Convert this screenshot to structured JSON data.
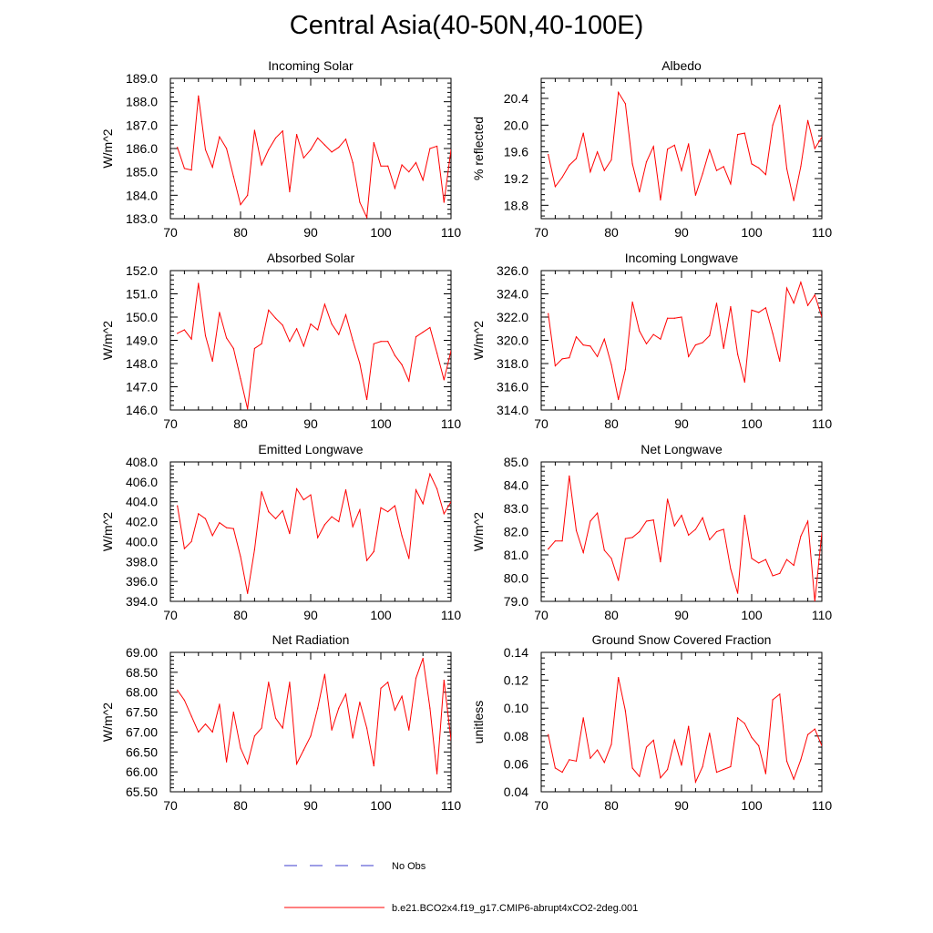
{
  "title": "Central Asia(40-50N,40-100E)",
  "line_color": "#ff0000",
  "obs_color": "#3b3bcc",
  "legend": {
    "obs_label": "No Obs",
    "model_label": "b.e21.BCO2x4.f19_g17.CMIP6-abrupt4xCO2-2deg.001"
  },
  "chart_data": [
    {
      "type": "line",
      "title": "Incoming Solar",
      "xlabel": "",
      "ylabel": "W/m^2",
      "xlim": [
        70,
        110
      ],
      "ylim": [
        183.0,
        189.0
      ],
      "yticks": [
        183.0,
        184.0,
        185.0,
        186.0,
        187.0,
        188.0,
        189.0
      ],
      "ytick_decimals": 1,
      "xticks": [
        70,
        80,
        90,
        100,
        110
      ],
      "x_start": 71,
      "values": [
        186.05,
        185.15,
        185.08,
        188.25,
        185.95,
        185.2,
        186.5,
        186.0,
        184.8,
        183.6,
        184.0,
        186.78,
        185.3,
        185.95,
        186.45,
        186.75,
        184.15,
        186.6,
        185.6,
        185.95,
        186.45,
        186.15,
        185.85,
        186.05,
        186.4,
        185.4,
        183.7,
        183.05,
        186.25,
        185.25,
        185.25,
        184.3,
        185.3,
        185.0,
        185.4,
        184.65,
        186.0,
        186.1,
        183.7,
        185.95
      ]
    },
    {
      "type": "line",
      "title": "Albedo",
      "xlabel": "",
      "ylabel": "% reflected",
      "xlim": [
        70,
        110
      ],
      "ylim": [
        18.6,
        20.7
      ],
      "yticks": [
        18.8,
        19.2,
        19.6,
        20.0,
        20.4
      ],
      "ytick_decimals": 1,
      "xticks": [
        70,
        80,
        90,
        100,
        110
      ],
      "x_start": 71,
      "values": [
        19.56,
        19.08,
        19.22,
        19.4,
        19.5,
        19.88,
        19.3,
        19.6,
        19.32,
        19.48,
        20.49,
        20.32,
        19.42,
        19.0,
        19.45,
        19.68,
        18.88,
        19.64,
        19.7,
        19.32,
        19.72,
        18.95,
        19.27,
        19.63,
        19.32,
        19.38,
        19.12,
        19.86,
        19.88,
        19.42,
        19.36,
        19.26,
        20.0,
        20.3,
        19.35,
        18.87,
        19.38,
        20.07,
        19.65,
        19.82
      ]
    },
    {
      "type": "line",
      "title": "Absorbed Solar",
      "xlabel": "",
      "ylabel": "W/m^2",
      "xlim": [
        70,
        110
      ],
      "ylim": [
        146.0,
        152.0
      ],
      "yticks": [
        146.0,
        147.0,
        148.0,
        149.0,
        150.0,
        151.0,
        152.0
      ],
      "ytick_decimals": 1,
      "xticks": [
        70,
        80,
        90,
        100,
        110
      ],
      "x_start": 71,
      "values": [
        149.3,
        149.45,
        149.05,
        151.45,
        149.2,
        148.1,
        150.2,
        149.1,
        148.65,
        147.35,
        146.05,
        148.65,
        148.85,
        150.3,
        149.95,
        149.65,
        148.95,
        149.5,
        148.75,
        149.7,
        149.45,
        150.55,
        149.7,
        149.25,
        150.1,
        149.0,
        148.0,
        146.45,
        148.85,
        148.95,
        148.95,
        148.35,
        147.95,
        147.25,
        149.15,
        149.35,
        149.55,
        148.45,
        147.3,
        148.55
      ]
    },
    {
      "type": "line",
      "title": "Incoming Longwave",
      "xlabel": "",
      "ylabel": "W/m^2",
      "xlim": [
        70,
        110
      ],
      "ylim": [
        314.0,
        326.0
      ],
      "yticks": [
        314.0,
        316.0,
        318.0,
        320.0,
        322.0,
        324.0,
        326.0
      ],
      "ytick_decimals": 1,
      "xticks": [
        70,
        80,
        90,
        100,
        110
      ],
      "x_start": 71,
      "values": [
        322.3,
        317.8,
        318.4,
        318.5,
        320.3,
        319.6,
        319.5,
        318.6,
        320.1,
        317.9,
        314.9,
        317.5,
        323.3,
        320.8,
        319.7,
        320.5,
        320.1,
        321.9,
        321.9,
        322.0,
        318.6,
        319.6,
        319.8,
        320.4,
        323.2,
        319.3,
        322.9,
        318.8,
        316.4,
        322.6,
        322.4,
        322.8,
        320.6,
        318.2,
        324.5,
        323.2,
        325.0,
        323.0,
        323.9,
        322.0
      ]
    },
    {
      "type": "line",
      "title": "Emitted Longwave",
      "xlabel": "",
      "ylabel": "W/m^2",
      "xlim": [
        70,
        110
      ],
      "ylim": [
        394.0,
        408.0
      ],
      "yticks": [
        394.0,
        396.0,
        398.0,
        400.0,
        402.0,
        404.0,
        406.0,
        408.0
      ],
      "ytick_decimals": 1,
      "xticks": [
        70,
        80,
        90,
        100,
        110
      ],
      "x_start": 71,
      "values": [
        403.6,
        399.3,
        400.0,
        402.8,
        402.3,
        400.6,
        401.9,
        401.4,
        401.3,
        398.5,
        394.8,
        399.2,
        405.0,
        403.0,
        402.3,
        403.1,
        400.8,
        405.3,
        404.2,
        404.7,
        400.4,
        401.7,
        402.5,
        402.0,
        405.2,
        401.5,
        403.2,
        398.1,
        399.0,
        403.4,
        403.0,
        403.6,
        400.6,
        398.3,
        405.2,
        403.8,
        406.8,
        405.3,
        402.8,
        404.0
      ]
    },
    {
      "type": "line",
      "title": "Net Longwave",
      "xlabel": "",
      "ylabel": "W/m^2",
      "xlim": [
        70,
        110
      ],
      "ylim": [
        79.0,
        85.0
      ],
      "yticks": [
        79.0,
        80.0,
        81.0,
        82.0,
        83.0,
        84.0,
        85.0
      ],
      "ytick_decimals": 1,
      "xticks": [
        70,
        80,
        90,
        100,
        110
      ],
      "x_start": 71,
      "values": [
        81.25,
        81.6,
        81.6,
        84.4,
        82.05,
        81.1,
        82.45,
        82.8,
        81.2,
        80.85,
        79.9,
        81.7,
        81.75,
        82.0,
        82.45,
        82.5,
        80.7,
        83.4,
        82.25,
        82.7,
        81.85,
        82.1,
        82.6,
        81.65,
        82.0,
        82.1,
        80.4,
        79.35,
        82.7,
        80.85,
        80.65,
        80.8,
        80.1,
        80.2,
        80.8,
        80.55,
        81.8,
        82.45,
        79.0,
        81.95
      ]
    },
    {
      "type": "line",
      "title": "Net Radiation",
      "xlabel": "",
      "ylabel": "W/m^2",
      "xlim": [
        70,
        110
      ],
      "ylim": [
        65.5,
        69.0
      ],
      "yticks": [
        65.5,
        66.0,
        66.5,
        67.0,
        67.5,
        68.0,
        68.5,
        69.0
      ],
      "ytick_decimals": 2,
      "xticks": [
        70,
        80,
        90,
        100,
        110
      ],
      "x_start": 71,
      "values": [
        68.05,
        67.8,
        67.4,
        67.0,
        67.2,
        67.0,
        67.7,
        66.25,
        67.5,
        66.6,
        66.2,
        66.9,
        67.1,
        68.25,
        67.35,
        67.1,
        68.25,
        66.2,
        66.55,
        66.9,
        67.6,
        68.45,
        67.05,
        67.6,
        67.95,
        66.85,
        67.75,
        67.1,
        66.15,
        68.1,
        68.25,
        67.55,
        67.9,
        67.05,
        68.35,
        68.85,
        67.6,
        65.95,
        68.3,
        66.8
      ]
    },
    {
      "type": "line",
      "title": "Ground Snow Covered Fraction",
      "xlabel": "",
      "ylabel": "unitless",
      "xlim": [
        70,
        110
      ],
      "ylim": [
        0.04,
        0.14
      ],
      "yticks": [
        0.04,
        0.06,
        0.08,
        0.1,
        0.12,
        0.14
      ],
      "ytick_decimals": 2,
      "xticks": [
        70,
        80,
        90,
        100,
        110
      ],
      "x_start": 71,
      "values": [
        0.081,
        0.057,
        0.054,
        0.063,
        0.062,
        0.093,
        0.064,
        0.07,
        0.061,
        0.074,
        0.122,
        0.098,
        0.057,
        0.051,
        0.072,
        0.077,
        0.05,
        0.056,
        0.077,
        0.059,
        0.087,
        0.047,
        0.058,
        0.082,
        0.054,
        0.056,
        0.058,
        0.093,
        0.089,
        0.079,
        0.073,
        0.053,
        0.106,
        0.11,
        0.062,
        0.049,
        0.063,
        0.081,
        0.085,
        0.073
      ]
    }
  ]
}
